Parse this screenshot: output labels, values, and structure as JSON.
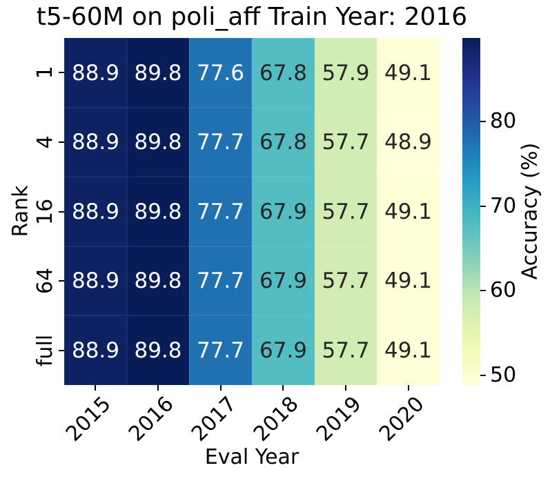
{
  "chart_data": {
    "type": "heatmap",
    "title": "t5-60M on poli_aff Train Year: 2016",
    "xlabel": "Eval Year",
    "ylabel": "Rank",
    "x_categories": [
      "2015",
      "2016",
      "2017",
      "2018",
      "2019",
      "2020"
    ],
    "y_categories": [
      "1",
      "4",
      "16",
      "64",
      "full"
    ],
    "values": [
      [
        88.9,
        89.8,
        77.6,
        67.8,
        57.9,
        49.1
      ],
      [
        88.9,
        89.8,
        77.7,
        67.8,
        57.7,
        48.9
      ],
      [
        88.9,
        89.8,
        77.7,
        67.9,
        57.7,
        49.1
      ],
      [
        88.9,
        89.8,
        77.7,
        67.9,
        57.7,
        49.1
      ],
      [
        88.9,
        89.8,
        77.7,
        67.9,
        57.7,
        49.1
      ]
    ],
    "x_tick_rotation": 45,
    "grid": false,
    "colorbar": {
      "label": "Accuracy (%)",
      "ticks": [
        80,
        70,
        60,
        50
      ],
      "vmin": 48.9,
      "vmax": 89.8,
      "position": "right"
    },
    "colormap": {
      "name": "YlGnBu",
      "stops": [
        {
          "p": 0.0,
          "hex": "#ffffd9"
        },
        {
          "p": 0.125,
          "hex": "#edf8b1"
        },
        {
          "p": 0.25,
          "hex": "#c7e9b4"
        },
        {
          "p": 0.375,
          "hex": "#7fcdbb"
        },
        {
          "p": 0.5,
          "hex": "#41b6c4"
        },
        {
          "p": 0.625,
          "hex": "#1d91c0"
        },
        {
          "p": 0.75,
          "hex": "#225ea8"
        },
        {
          "p": 0.875,
          "hex": "#253494"
        },
        {
          "p": 1.0,
          "hex": "#081d58"
        }
      ]
    },
    "annotation_colors": {
      "light": "#ffffff",
      "dark": "#262626"
    }
  }
}
